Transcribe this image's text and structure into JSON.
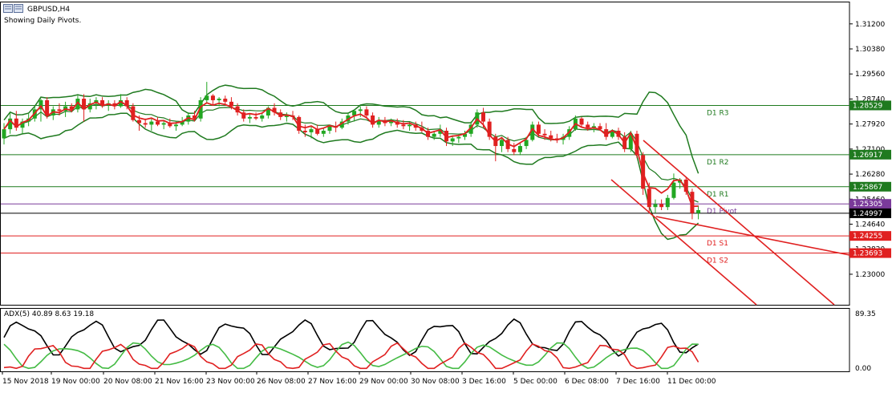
{
  "window": {
    "title": "GBPUSD,H4",
    "subtitle": "Showing Daily Pivots."
  },
  "icons": {
    "chart_window": "chart-window-icon"
  },
  "colors": {
    "bull_candle": "#22a722",
    "bear_candle": "#e02020",
    "bollinger": "#1f7a1f",
    "ma": "#e02020",
    "pivot_resistance": "#1f7a1f",
    "pivot_support": "#e02020",
    "pivot_main": "#7a3a9a",
    "bid_line": "#000000",
    "adx_main": "#000000",
    "adx_plus": "#44bb44",
    "adx_minus": "#e02020"
  },
  "price_axis": {
    "min": 1.22,
    "max": 1.3193,
    "ticks": [
      "1.31200",
      "1.30380",
      "1.29560",
      "1.28740",
      "1.27920",
      "1.27100",
      "1.26280",
      "1.25460",
      "1.24640",
      "1.23820",
      "1.23000"
    ]
  },
  "pivots": [
    {
      "name": "D1 R3",
      "value": 1.28529,
      "label": "1.28529",
      "kind": "resistance"
    },
    {
      "name": "D1 R2",
      "value": 1.26917,
      "label": "1.26917",
      "kind": "resistance"
    },
    {
      "name": "D1 R1",
      "value": 1.25867,
      "label": "1.25867",
      "kind": "resistance"
    },
    {
      "name": "D1 Pivot",
      "value": 1.25305,
      "label": "1.25305",
      "kind": "main"
    },
    {
      "name": "D1 S1",
      "value": 1.24255,
      "label": "1.24255",
      "kind": "support"
    },
    {
      "name": "D1 S2",
      "value": 1.23693,
      "label": "1.23693",
      "kind": "support"
    }
  ],
  "current_price": {
    "value": 1.24997,
    "label": "1.24997"
  },
  "time_axis": [
    "15 Nov 2018",
    "19 Nov 00:00",
    "20 Nov 08:00",
    "21 Nov 16:00",
    "23 Nov 00:00",
    "26 Nov 08:00",
    "27 Nov 16:00",
    "29 Nov 00:00",
    "30 Nov 08:00",
    "3 Dec 16:00",
    "5 Dec 00:00",
    "6 Dec 08:00",
    "7 Dec 16:00",
    "11 Dec 00:00"
  ],
  "candles": [
    [
      1.2745,
      1.2795,
      1.2725,
      1.2775
    ],
    [
      1.2775,
      1.283,
      1.276,
      1.281
    ],
    [
      1.281,
      1.2835,
      1.277,
      1.278
    ],
    [
      1.278,
      1.281,
      1.276,
      1.28
    ],
    [
      1.28,
      1.2825,
      1.2785,
      1.281
    ],
    [
      1.281,
      1.285,
      1.28,
      1.284
    ],
    [
      1.284,
      1.2875,
      1.28,
      1.287
    ],
    [
      1.287,
      1.288,
      1.281,
      1.282
    ],
    [
      1.282,
      1.285,
      1.2805,
      1.284
    ],
    [
      1.284,
      1.286,
      1.282,
      1.2835
    ],
    [
      1.2835,
      1.2865,
      1.2815,
      1.285
    ],
    [
      1.285,
      1.286,
      1.283,
      1.284
    ],
    [
      1.284,
      1.2885,
      1.283,
      1.2875
    ],
    [
      1.2875,
      1.289,
      1.28,
      1.284
    ],
    [
      1.284,
      1.2875,
      1.283,
      1.286
    ],
    [
      1.286,
      1.288,
      1.284,
      1.287
    ],
    [
      1.287,
      1.288,
      1.2845,
      1.2855
    ],
    [
      1.2855,
      1.287,
      1.2835,
      1.286
    ],
    [
      1.286,
      1.287,
      1.284,
      1.285
    ],
    [
      1.285,
      1.289,
      1.2845,
      1.287
    ],
    [
      1.287,
      1.288,
      1.284,
      1.285
    ],
    [
      1.285,
      1.286,
      1.28,
      1.2805
    ],
    [
      1.2805,
      1.282,
      1.277,
      1.2795
    ],
    [
      1.2795,
      1.281,
      1.278,
      1.279
    ],
    [
      1.279,
      1.281,
      1.277,
      1.28
    ],
    [
      1.28,
      1.2815,
      1.2785,
      1.279
    ],
    [
      1.279,
      1.2805,
      1.2775,
      1.2795
    ],
    [
      1.2795,
      1.281,
      1.278,
      1.2785
    ],
    [
      1.2785,
      1.28,
      1.277,
      1.279
    ],
    [
      1.279,
      1.2815,
      1.2785,
      1.28
    ],
    [
      1.28,
      1.283,
      1.279,
      1.282
    ],
    [
      1.282,
      1.2835,
      1.28,
      1.281
    ],
    [
      1.281,
      1.288,
      1.28,
      1.287
    ],
    [
      1.287,
      1.293,
      1.286,
      1.2885
    ],
    [
      1.2885,
      1.289,
      1.2855,
      1.287
    ],
    [
      1.287,
      1.288,
      1.285,
      1.2875
    ],
    [
      1.2875,
      1.2885,
      1.2855,
      1.2865
    ],
    [
      1.2865,
      1.288,
      1.284,
      1.285
    ],
    [
      1.285,
      1.286,
      1.282,
      1.283
    ],
    [
      1.283,
      1.284,
      1.28,
      1.281
    ],
    [
      1.281,
      1.2825,
      1.2795,
      1.2815
    ],
    [
      1.2815,
      1.283,
      1.2805,
      1.281
    ],
    [
      1.281,
      1.283,
      1.28,
      1.282
    ],
    [
      1.282,
      1.285,
      1.281,
      1.2845
    ],
    [
      1.2845,
      1.286,
      1.282,
      1.283
    ],
    [
      1.283,
      1.284,
      1.2805,
      1.2815
    ],
    [
      1.2815,
      1.283,
      1.28,
      1.282
    ],
    [
      1.282,
      1.2835,
      1.2805,
      1.2815
    ],
    [
      1.2815,
      1.282,
      1.276,
      1.277
    ],
    [
      1.277,
      1.279,
      1.275,
      1.2765
    ],
    [
      1.2765,
      1.2785,
      1.2745,
      1.2775
    ],
    [
      1.2775,
      1.279,
      1.2755,
      1.276
    ],
    [
      1.276,
      1.278,
      1.275,
      1.277
    ],
    [
      1.277,
      1.279,
      1.276,
      1.2785
    ],
    [
      1.2785,
      1.28,
      1.2765,
      1.278
    ],
    [
      1.278,
      1.281,
      1.2775,
      1.28
    ],
    [
      1.28,
      1.283,
      1.279,
      1.282
    ],
    [
      1.282,
      1.284,
      1.28,
      1.2835
    ],
    [
      1.2835,
      1.285,
      1.2815,
      1.284
    ],
    [
      1.284,
      1.285,
      1.281,
      1.282
    ],
    [
      1.282,
      1.283,
      1.278,
      1.279
    ],
    [
      1.279,
      1.2815,
      1.278,
      1.2805
    ],
    [
      1.2805,
      1.2815,
      1.2785,
      1.2795
    ],
    [
      1.2795,
      1.281,
      1.2785,
      1.28
    ],
    [
      1.28,
      1.281,
      1.278,
      1.279
    ],
    [
      1.279,
      1.2805,
      1.2775,
      1.2785
    ],
    [
      1.2785,
      1.28,
      1.277,
      1.279
    ],
    [
      1.279,
      1.28,
      1.277,
      1.278
    ],
    [
      1.278,
      1.28,
      1.2765,
      1.277
    ],
    [
      1.277,
      1.278,
      1.274,
      1.275
    ],
    [
      1.275,
      1.277,
      1.274,
      1.276
    ],
    [
      1.276,
      1.279,
      1.275,
      1.277
    ],
    [
      1.277,
      1.278,
      1.272,
      1.2735
    ],
    [
      1.2735,
      1.2755,
      1.272,
      1.2745
    ],
    [
      1.2745,
      1.276,
      1.273,
      1.275
    ],
    [
      1.275,
      1.277,
      1.274,
      1.276
    ],
    [
      1.276,
      1.28,
      1.275,
      1.279
    ],
    [
      1.279,
      1.284,
      1.278,
      1.283
    ],
    [
      1.283,
      1.2845,
      1.278,
      1.28
    ],
    [
      1.28,
      1.281,
      1.274,
      1.275
    ],
    [
      1.275,
      1.276,
      1.267,
      1.272
    ],
    [
      1.272,
      1.275,
      1.27,
      1.274
    ],
    [
      1.274,
      1.275,
      1.27,
      1.271
    ],
    [
      1.271,
      1.273,
      1.269,
      1.27
    ],
    [
      1.27,
      1.273,
      1.269,
      1.272
    ],
    [
      1.272,
      1.275,
      1.271,
      1.274
    ],
    [
      1.274,
      1.28,
      1.2735,
      1.279
    ],
    [
      1.279,
      1.28,
      1.275,
      1.276
    ],
    [
      1.276,
      1.2775,
      1.274,
      1.2755
    ],
    [
      1.2755,
      1.277,
      1.2735,
      1.2745
    ],
    [
      1.2745,
      1.276,
      1.273,
      1.274
    ],
    [
      1.274,
      1.276,
      1.2725,
      1.275
    ],
    [
      1.275,
      1.2785,
      1.274,
      1.2775
    ],
    [
      1.2775,
      1.282,
      1.277,
      1.281
    ],
    [
      1.281,
      1.2815,
      1.278,
      1.279
    ],
    [
      1.279,
      1.28,
      1.277,
      1.278
    ],
    [
      1.278,
      1.2795,
      1.2765,
      1.2785
    ],
    [
      1.2785,
      1.2795,
      1.277,
      1.2775
    ],
    [
      1.2775,
      1.2795,
      1.274,
      1.275
    ],
    [
      1.275,
      1.2775,
      1.2745,
      1.277
    ],
    [
      1.277,
      1.278,
      1.274,
      1.275
    ],
    [
      1.275,
      1.2765,
      1.27,
      1.271
    ],
    [
      1.271,
      1.277,
      1.27,
      1.276
    ],
    [
      1.276,
      1.277,
      1.268,
      1.269
    ],
    [
      1.269,
      1.27,
      1.256,
      1.258
    ],
    [
      1.258,
      1.26,
      1.25,
      1.252
    ],
    [
      1.252,
      1.2545,
      1.25,
      1.253
    ],
    [
      1.253,
      1.2545,
      1.251,
      1.252
    ],
    [
      1.252,
      1.256,
      1.251,
      1.255
    ],
    [
      1.255,
      1.263,
      1.2545,
      1.26
    ],
    [
      1.26,
      1.2615,
      1.258,
      1.261
    ],
    [
      1.261,
      1.262,
      1.256,
      1.257
    ],
    [
      1.257,
      1.258,
      1.248,
      1.25
    ],
    [
      1.25,
      1.2525,
      1.248,
      1.251
    ]
  ],
  "indicator": {
    "label": "ADX(5) 40.89 8.63 19.18",
    "scale_top": "89.35",
    "scale_bottom": "0.00",
    "max": 89.35
  }
}
